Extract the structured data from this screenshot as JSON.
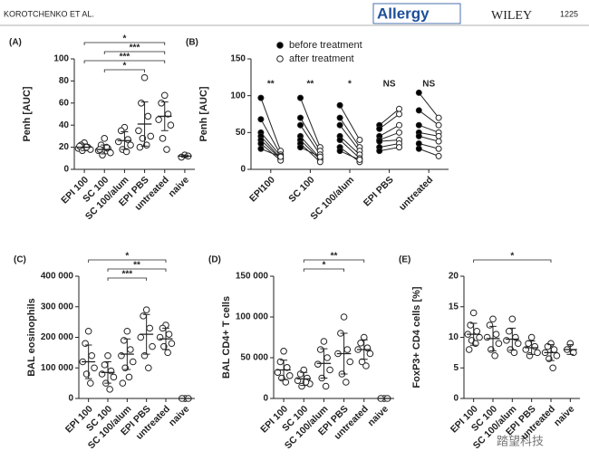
{
  "header": {
    "author": "KOROTCHENKO ET AL.",
    "journal": "Allergy",
    "publisher": "WILEY",
    "page": "1225"
  },
  "watermark": "踏望科技",
  "chart_data": [
    {
      "type": "dot",
      "label": "(A)",
      "ylabel": "Penh [AUC]",
      "categories": [
        "EPI 100",
        "SC 100",
        "SC 100/alum",
        "EPI PBS",
        "untreated",
        "naive"
      ],
      "points": [
        [
          24,
          22,
          20,
          19,
          18,
          17,
          20,
          21
        ],
        [
          28,
          22,
          19,
          17,
          15,
          13,
          20,
          18
        ],
        [
          38,
          35,
          27,
          25,
          22,
          18,
          16
        ],
        [
          83,
          60,
          48,
          35,
          30,
          28,
          22,
          20
        ],
        [
          67,
          60,
          50,
          45,
          40,
          28,
          18
        ],
        [
          13,
          11,
          12
        ]
      ],
      "means": [
        20,
        18,
        26,
        41,
        48,
        12
      ],
      "errors": [
        3,
        4,
        8,
        20,
        13,
        1
      ],
      "ylim": [
        0,
        100
      ],
      "yticks": [
        0,
        20,
        40,
        60,
        80,
        100
      ],
      "brackets": [
        {
          "from": 0,
          "to": 4,
          "label": "*"
        },
        {
          "from": 1,
          "to": 4,
          "label": "***"
        },
        {
          "from": 0,
          "to": 4,
          "label": "***"
        },
        {
          "from": 1,
          "to": 3,
          "label": "*"
        }
      ]
    },
    {
      "type": "paired",
      "label": "(B)",
      "ylabel": "Penh [AUC]",
      "categories": [
        "EPI100",
        "SC 100",
        "SC 100/alum",
        "EPI PBS",
        "untreated"
      ],
      "series": [
        {
          "name": "before treatment",
          "color": "#000000",
          "values": [
            [
              97,
              68,
              50,
              45,
              40,
              35,
              28
            ],
            [
              97,
              70,
              60,
              45,
              40,
              35,
              30
            ],
            [
              87,
              70,
              60,
              45,
              40,
              30,
              25
            ],
            [
              60,
              55,
              45,
              40,
              38,
              30,
              25
            ],
            [
              104,
              80,
              60,
              50,
              45,
              35,
              28
            ]
          ]
        },
        {
          "name": "after treatment",
          "color": "#ffffff",
          "values": [
            [
              25,
              20,
              18,
              15,
              14,
              12,
              17
            ],
            [
              30,
              25,
              20,
              15,
              13,
              10,
              17
            ],
            [
              40,
              30,
              25,
              20,
              15,
              10,
              13
            ],
            [
              82,
              75,
              60,
              50,
              40,
              35,
              30
            ],
            [
              70,
              60,
              50,
              45,
              38,
              28,
              18
            ]
          ]
        }
      ],
      "significance": [
        "**",
        "**",
        "*",
        "NS",
        "NS"
      ],
      "ylim": [
        0,
        150
      ],
      "yticks": [
        0,
        50,
        100,
        150
      ]
    },
    {
      "type": "dot",
      "label": "(C)",
      "ylabel": "BAL eosinophils",
      "categories": [
        "EPI 100",
        "SC 100",
        "SC 100/alum",
        "EPI PBS",
        "untreated",
        "naive"
      ],
      "points": [
        [
          220000,
          180000,
          140000,
          120000,
          100000,
          80000,
          50000
        ],
        [
          140000,
          110000,
          90000,
          80000,
          70000,
          50000,
          30000
        ],
        [
          220000,
          190000,
          160000,
          140000,
          120000,
          100000,
          70000,
          50000
        ],
        [
          290000,
          270000,
          230000,
          200000,
          170000,
          140000,
          100000
        ],
        [
          240000,
          230000,
          210000,
          200000,
          180000,
          170000,
          150000
        ],
        [
          0,
          0,
          0
        ]
      ],
      "means": [
        120000,
        85000,
        145000,
        210000,
        195000,
        0
      ],
      "errors": [
        55000,
        35000,
        50000,
        65000,
        35000,
        0
      ],
      "ylim": [
        0,
        400000
      ],
      "yticks": [
        0,
        {
          "value": 100000,
          "label": "100 000"
        },
        {
          "value": 200000,
          "label": "200 000"
        },
        {
          "value": 300000,
          "label": "300 000"
        },
        {
          "value": 400000,
          "label": "400 000"
        }
      ],
      "brackets": [
        {
          "from": 0,
          "to": 4,
          "label": "*"
        },
        {
          "from": 1,
          "to": 4,
          "label": "**"
        },
        {
          "from": 1,
          "to": 3,
          "label": "***"
        }
      ]
    },
    {
      "type": "dot",
      "label": "(D)",
      "ylabel": "BAL CD4+ T cells",
      "categories": [
        "EPI 100",
        "SC 100",
        "SC 100/alum",
        "EPI PBS",
        "untreated",
        "naive"
      ],
      "points": [
        [
          58000,
          45000,
          38000,
          32000,
          28000,
          25000,
          20000
        ],
        [
          35000,
          30000,
          25000,
          22000,
          18000,
          15000,
          20000
        ],
        [
          70000,
          60000,
          50000,
          42000,
          35000,
          25000,
          15000
        ],
        [
          100000,
          80000,
          60000,
          55000,
          45000,
          30000,
          20000
        ],
        [
          75000,
          68000,
          62000,
          60000,
          55000,
          45000,
          40000
        ],
        [
          0,
          0,
          0
        ]
      ],
      "means": [
        35000,
        24000,
        43000,
        55000,
        60000,
        0
      ],
      "errors": [
        12000,
        8000,
        18000,
        25000,
        12000,
        0
      ],
      "ylim": [
        0,
        150000
      ],
      "yticks": [
        0,
        {
          "value": 50000,
          "label": "50 000"
        },
        {
          "value": 100000,
          "label": "100 000"
        },
        {
          "value": 150000,
          "label": "150 000"
        }
      ],
      "brackets": [
        {
          "from": 1,
          "to": 4,
          "label": "**"
        },
        {
          "from": 1,
          "to": 3,
          "label": "*"
        }
      ]
    },
    {
      "type": "dot",
      "label": "(E)",
      "ylabel": "FoxP3+ CD4 cells [%]",
      "categories": [
        "EPI 100",
        "SC 100",
        "SC 100/alum",
        "EPI PBS",
        "untreated",
        "naive"
      ],
      "points": [
        [
          14,
          12,
          11,
          10.5,
          10,
          9.5,
          9,
          8
        ],
        [
          13,
          12,
          10.5,
          10,
          9,
          8,
          7
        ],
        [
          13,
          11,
          10,
          9.5,
          9,
          8,
          7.5
        ],
        [
          10,
          9,
          8.5,
          8,
          7.5,
          7
        ],
        [
          9,
          8.5,
          8,
          7.5,
          7,
          6.5,
          5
        ],
        [
          9,
          8,
          7.5
        ]
      ],
      "means": [
        10.5,
        9.8,
        9.7,
        8.3,
        7.5,
        8
      ],
      "errors": [
        1.8,
        2,
        1.8,
        1.1,
        1.3,
        0.8
      ],
      "ylim": [
        0,
        20
      ],
      "yticks": [
        0,
        5,
        10,
        15,
        20
      ],
      "brackets": [
        {
          "from": 0,
          "to": 4,
          "label": "*"
        }
      ]
    }
  ]
}
